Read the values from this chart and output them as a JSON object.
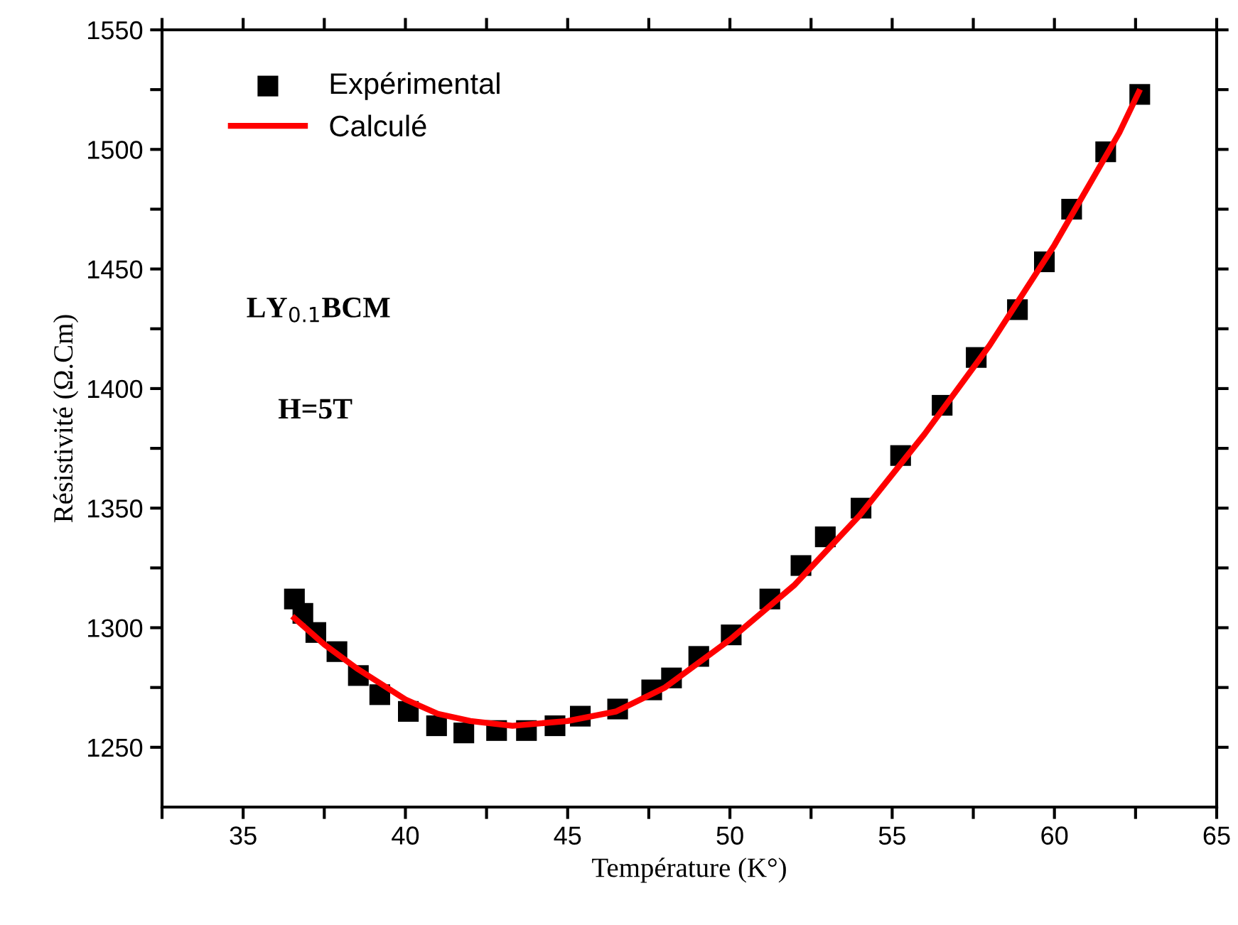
{
  "chart_data": {
    "type": "scatter",
    "xlabel": "Température (K°)",
    "ylabel": "Résistivité (Ω.Cm)",
    "xlim": [
      32.5,
      65
    ],
    "ylim": [
      1225,
      1550
    ],
    "xticks": [
      {
        "value": 32.5,
        "label": null
      },
      35,
      {
        "value": 37.5,
        "label": null
      },
      40,
      {
        "value": 42.5,
        "label": null
      },
      45,
      {
        "value": 47.5,
        "label": null
      },
      50,
      {
        "value": 52.5,
        "label": null
      },
      55,
      {
        "value": 57.5,
        "label": null
      },
      60,
      {
        "value": 62.5,
        "label": null
      },
      65
    ],
    "yticks": [
      1250,
      {
        "value": 1275,
        "label": null
      },
      1300,
      {
        "value": 1325,
        "label": null
      },
      1350,
      {
        "value": 1375,
        "label": null
      },
      1400,
      {
        "value": 1425,
        "label": null
      },
      1450,
      {
        "value": 1475,
        "label": null
      },
      1500,
      {
        "value": 1525,
        "label": null
      },
      1550
    ],
    "grid": false,
    "legend": "top left",
    "annotations": [
      "LY$_{0.1}$BCM",
      "H=5T"
    ],
    "series": [
      {
        "name": "Expérimental",
        "marker": "square",
        "color": "#000000",
        "x": [
          36.58,
          36.84,
          37.24,
          37.89,
          38.55,
          39.21,
          40.09,
          40.96,
          41.8,
          42.81,
          43.73,
          44.61,
          45.39,
          46.54,
          47.59,
          48.2,
          49.04,
          50.04,
          51.23,
          52.19,
          52.94,
          54.04,
          55.26,
          56.54,
          57.59,
          58.86,
          59.69,
          60.53,
          61.58,
          62.63
        ],
        "values": [
          1312,
          1306,
          1298,
          1290,
          1280,
          1272,
          1265,
          1259,
          1256,
          1257,
          1257,
          1259,
          1263,
          1266,
          1274,
          1279,
          1288,
          1297,
          1312,
          1326,
          1338,
          1350,
          1372,
          1393,
          1413,
          1433,
          1453,
          1475,
          1499,
          1523
        ]
      },
      {
        "name": "Calculé",
        "type": "line",
        "marker": "none",
        "line_style": "solid",
        "color": "#ff0000",
        "x": [
          36.58,
          37.5,
          38.5,
          40,
          41,
          42,
          43.3,
          45,
          46.5,
          48,
          50,
          52,
          54,
          56,
          58,
          60,
          62,
          62.6
        ],
        "values": [
          1304,
          1293,
          1283,
          1270,
          1264,
          1261,
          1259,
          1261,
          1265,
          1275,
          1295,
          1318,
          1347,
          1381,
          1418,
          1460,
          1507,
          1524
        ]
      }
    ]
  }
}
